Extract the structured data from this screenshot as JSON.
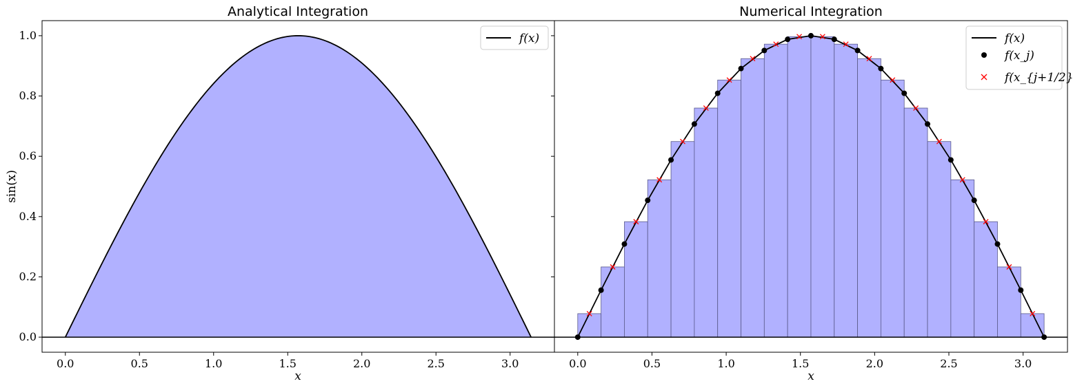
{
  "chart_data": [
    {
      "type": "area",
      "title": "Analytical Integration",
      "xlabel": "x",
      "ylabel": "sin(x)",
      "xlim": [
        -0.157,
        3.299
      ],
      "ylim": [
        -0.05,
        1.05
      ],
      "xticks": [
        "0.0",
        "0.5",
        "1.0",
        "1.5",
        "2.0",
        "2.5",
        "3.0"
      ],
      "yticks": [
        "0.0",
        "0.2",
        "0.4",
        "0.6",
        "0.8",
        "1.0"
      ],
      "function": "sin(x)",
      "x_range": [
        0,
        3.14159
      ],
      "fill_color": "#b1b1ff",
      "line_color": "#000000",
      "legend": {
        "position": "top-right",
        "entries": [
          {
            "label": "f(x)",
            "marker": "line"
          }
        ]
      }
    },
    {
      "type": "bar",
      "title": "Numerical Integration",
      "xlabel": "x",
      "xlim": [
        -0.157,
        3.299
      ],
      "ylim": [
        -0.05,
        1.05
      ],
      "xticks": [
        "0.0",
        "0.5",
        "1.0",
        "1.5",
        "2.0",
        "2.5",
        "3.0"
      ],
      "n_intervals": 20,
      "x_range": [
        0,
        3.14159
      ],
      "x_nodes": [
        0,
        0.1571,
        0.3142,
        0.4712,
        0.6283,
        0.7854,
        0.9425,
        1.0996,
        1.2566,
        1.4137,
        1.5708,
        1.7279,
        1.885,
        2.042,
        2.1991,
        2.3562,
        2.5133,
        2.6704,
        2.8274,
        2.9845,
        3.1416
      ],
      "f_nodes": [
        0,
        0.156,
        0.309,
        0.454,
        0.588,
        0.707,
        0.809,
        0.891,
        0.951,
        0.988,
        1.0,
        0.988,
        0.951,
        0.891,
        0.809,
        0.707,
        0.588,
        0.454,
        0.309,
        0.156,
        0
      ],
      "x_midpoints": [
        0.0785,
        0.2356,
        0.3927,
        0.5498,
        0.7069,
        0.8639,
        1.021,
        1.1781,
        1.3352,
        1.4923,
        1.6493,
        1.8064,
        1.9635,
        2.1206,
        2.2777,
        2.4347,
        2.5918,
        2.7489,
        2.906,
        3.0631
      ],
      "f_midpoints": [
        0.078,
        0.233,
        0.383,
        0.522,
        0.649,
        0.76,
        0.853,
        0.924,
        0.972,
        0.997,
        0.997,
        0.972,
        0.924,
        0.853,
        0.76,
        0.649,
        0.522,
        0.383,
        0.233,
        0.078
      ],
      "bar_color": "#b1b1ff",
      "legend": {
        "position": "top-right",
        "entries": [
          {
            "label": "f(x)",
            "marker": "line"
          },
          {
            "label": "f(x_j)",
            "marker": "dot"
          },
          {
            "label": "f(x_{j+1/2})",
            "marker": "cross"
          }
        ]
      }
    }
  ]
}
